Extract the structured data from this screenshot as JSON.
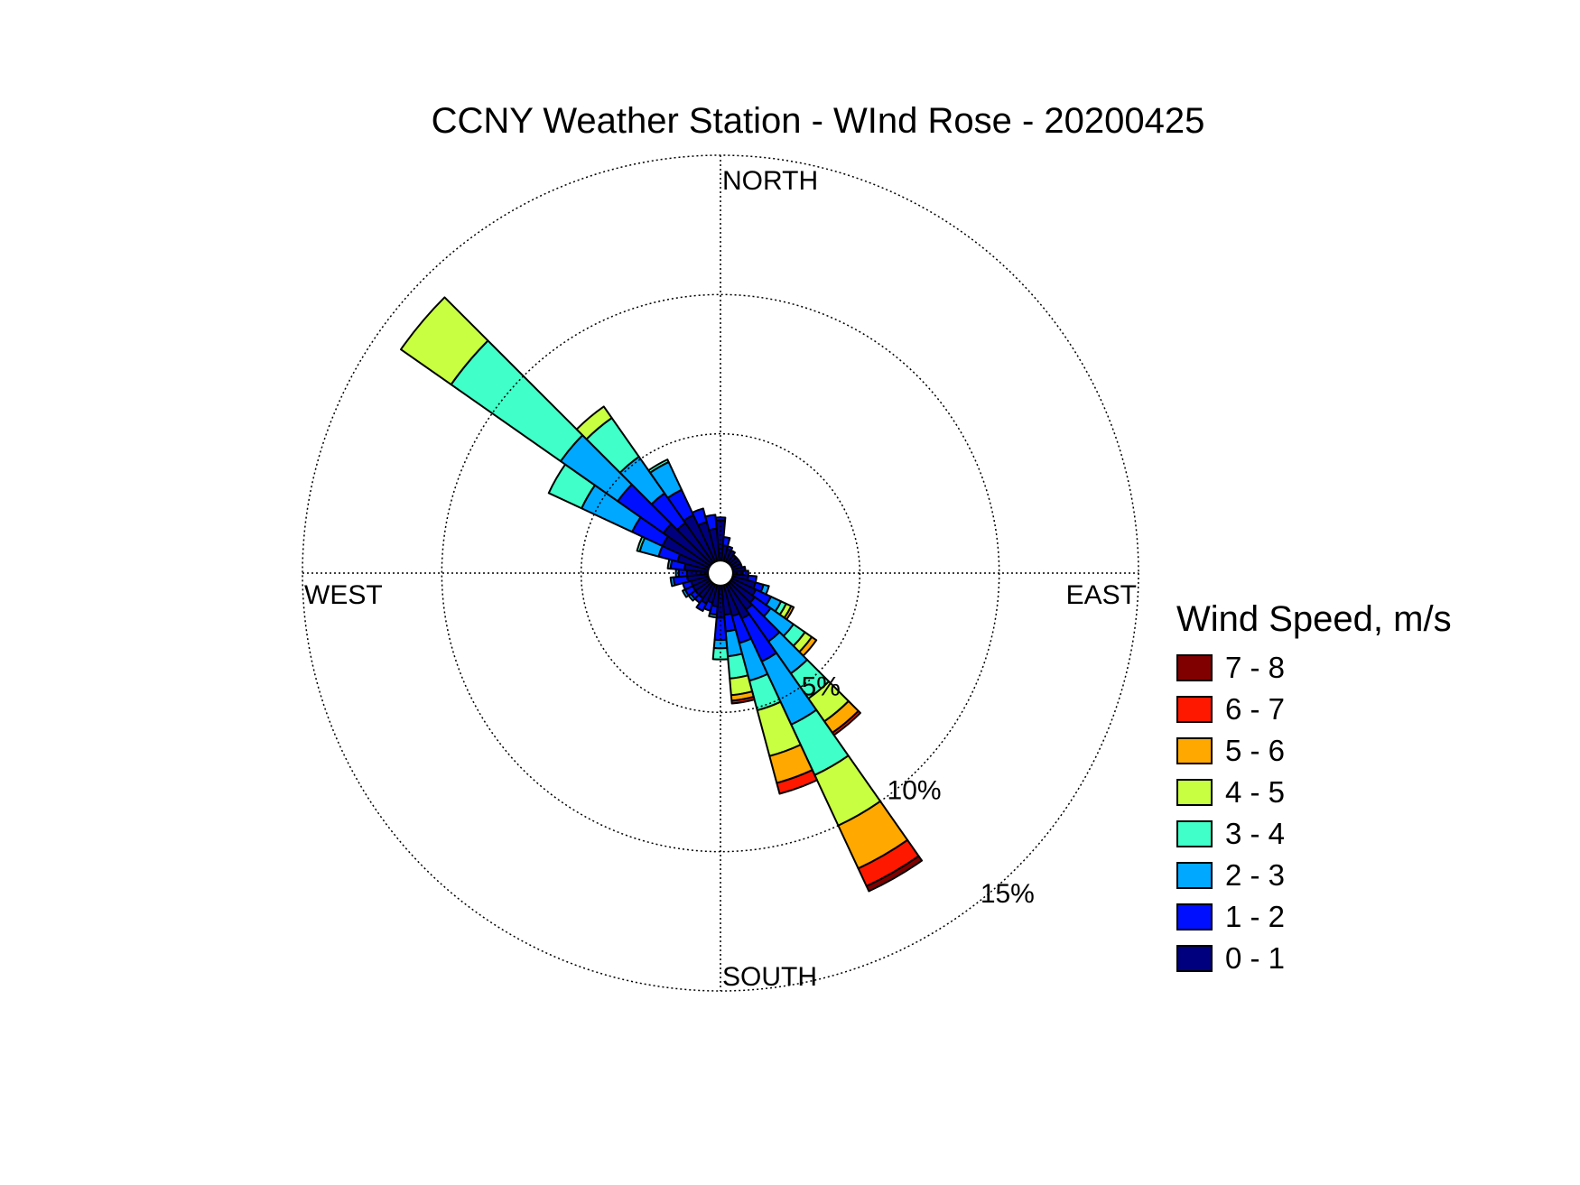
{
  "title": "CCNY Weather Station - WInd Rose - 20200425",
  "chart_data": {
    "type": "wind-rose",
    "direction_labels": {
      "north": "NORTH",
      "east": "EAST",
      "south": "SOUTH",
      "west": "WEST"
    },
    "ring_labels": [
      "5%",
      "10%",
      "15%"
    ],
    "ring_values": [
      5,
      10,
      15
    ],
    "radius_max": 15,
    "inner_hole": 0.45,
    "legend_title": "Wind Speed, m/s",
    "speed_bins": [
      {
        "label": "0 - 1",
        "color": "#00007f"
      },
      {
        "label": "1 - 2",
        "color": "#0010ff"
      },
      {
        "label": "2 - 3",
        "color": "#00a8ff"
      },
      {
        "label": "3 - 4",
        "color": "#40ffc8"
      },
      {
        "label": "4 - 5",
        "color": "#c8ff40"
      },
      {
        "label": "5 - 6",
        "color": "#ffa800"
      },
      {
        "label": "6 - 7",
        "color": "#ff1800"
      },
      {
        "label": "7 - 8",
        "color": "#800000"
      }
    ],
    "sector_width_deg": 10,
    "sectors": [
      {
        "direction": 0,
        "cumulative": [
          1.9,
          2.0
        ]
      },
      {
        "direction": 10,
        "cumulative": [
          1.0,
          1.3
        ]
      },
      {
        "direction": 20,
        "cumulative": [
          0.9,
          1.0
        ]
      },
      {
        "direction": 30,
        "cumulative": [
          0.9
        ]
      },
      {
        "direction": 40,
        "cumulative": [
          0.8
        ]
      },
      {
        "direction": 50,
        "cumulative": [
          0.8
        ]
      },
      {
        "direction": 60,
        "cumulative": [
          0.8
        ]
      },
      {
        "direction": 70,
        "cumulative": [
          0.8
        ]
      },
      {
        "direction": 80,
        "cumulative": [
          0.9
        ]
      },
      {
        "direction": 90,
        "cumulative": [
          0.8,
          1.0
        ]
      },
      {
        "direction": 100,
        "cumulative": [
          1.0,
          1.3
        ]
      },
      {
        "direction": 110,
        "cumulative": [
          1.3,
          1.6,
          1.8
        ]
      },
      {
        "direction": 120,
        "cumulative": [
          1.4,
          2.0,
          2.4,
          2.6,
          2.8,
          2.9
        ]
      },
      {
        "direction": 130,
        "cumulative": [
          1.5,
          2.2,
          3.2,
          3.7,
          4.0,
          4.2
        ]
      },
      {
        "direction": 140,
        "cumulative": [
          1.6,
          3.0,
          4.4,
          5.5,
          6.5,
          7.0,
          7.1
        ]
      },
      {
        "direction": 150,
        "cumulative": [
          1.8,
          3.5,
          6.0,
          8.0,
          10.0,
          11.7,
          12.4,
          12.6
        ]
      },
      {
        "direction": 160,
        "cumulative": [
          1.6,
          2.6,
          4.0,
          5.1,
          6.8,
          7.8,
          8.2
        ]
      },
      {
        "direction": 170,
        "cumulative": [
          1.5,
          2.1,
          3.0,
          3.8,
          4.4,
          4.6,
          4.7
        ]
      },
      {
        "direction": 180,
        "cumulative": [
          1.6,
          2.4,
          2.7,
          3.1
        ]
      },
      {
        "direction": 190,
        "cumulative": [
          1.2,
          1.5,
          1.6
        ]
      },
      {
        "direction": 200,
        "cumulative": [
          1.1,
          1.4
        ]
      },
      {
        "direction": 210,
        "cumulative": [
          1.2,
          1.5
        ]
      },
      {
        "direction": 220,
        "cumulative": [
          1.1,
          1.3
        ]
      },
      {
        "direction": 230,
        "cumulative": [
          1.1,
          1.3,
          1.4
        ]
      },
      {
        "direction": 240,
        "cumulative": [
          1.1,
          1.4,
          1.5
        ]
      },
      {
        "direction": 250,
        "cumulative": [
          1.1,
          1.4
        ]
      },
      {
        "direction": 260,
        "cumulative": [
          1.2,
          1.7,
          1.8
        ]
      },
      {
        "direction": 270,
        "cumulative": [
          1.2,
          1.5,
          1.6
        ]
      },
      {
        "direction": 280,
        "cumulative": [
          1.3,
          1.8,
          1.9
        ]
      },
      {
        "direction": 290,
        "cumulative": [
          1.6,
          2.3,
          3.0,
          3.1
        ]
      },
      {
        "direction": 300,
        "cumulative": [
          2.3,
          3.5,
          5.5,
          6.8
        ]
      },
      {
        "direction": 310,
        "cumulative": [
          2.5,
          4.5,
          7.0,
          11.8,
          14.0
        ]
      },
      {
        "direction": 320,
        "cumulative": [
          2.2,
          3.5,
          5.1,
          6.8,
          7.3
        ]
      },
      {
        "direction": 330,
        "cumulative": [
          2.3,
          3.3,
          4.4,
          4.5
        ]
      },
      {
        "direction": 340,
        "cumulative": [
          1.9,
          2.4
        ]
      },
      {
        "direction": 350,
        "cumulative": [
          1.6,
          2.1
        ]
      }
    ]
  }
}
